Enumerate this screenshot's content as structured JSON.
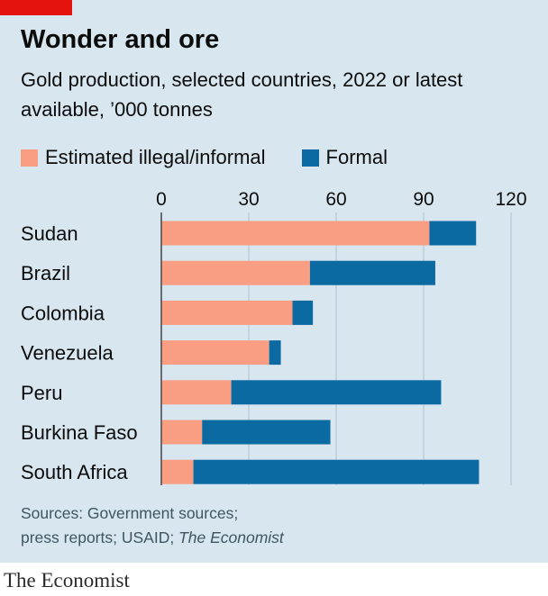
{
  "header": {
    "title": "Wonder and ore",
    "subtitle": "Gold production, selected countries, 2022 or latest available, ’000 tonnes"
  },
  "legend": {
    "items": [
      {
        "label": "Estimated illegal/informal",
        "color": "#f99e82"
      },
      {
        "label": "Formal",
        "color": "#0b6aa2"
      }
    ]
  },
  "chart_data": {
    "type": "bar",
    "orientation": "horizontal",
    "stacked": true,
    "categories": [
      "Sudan",
      "Brazil",
      "Colombia",
      "Venezuela",
      "Peru",
      "Burkina Faso",
      "South Africa"
    ],
    "series": [
      {
        "name": "Estimated illegal/informal",
        "color": "#f99e82",
        "values": [
          92,
          51,
          45,
          37,
          24,
          14,
          11
        ]
      },
      {
        "name": "Formal",
        "color": "#0b6aa2",
        "values": [
          16,
          43,
          7,
          4,
          72,
          44,
          98
        ]
      }
    ],
    "xticks": [
      "0",
      "30",
      "60",
      "90",
      "120"
    ],
    "xlim": [
      0,
      120
    ],
    "grid": true,
    "legend_position": "top-left"
  },
  "footer": {
    "source_line1": "Sources: Government sources;",
    "source_line2": "press reports; USAID; ",
    "source_italic": "The Economist",
    "brand": "The Economist"
  }
}
